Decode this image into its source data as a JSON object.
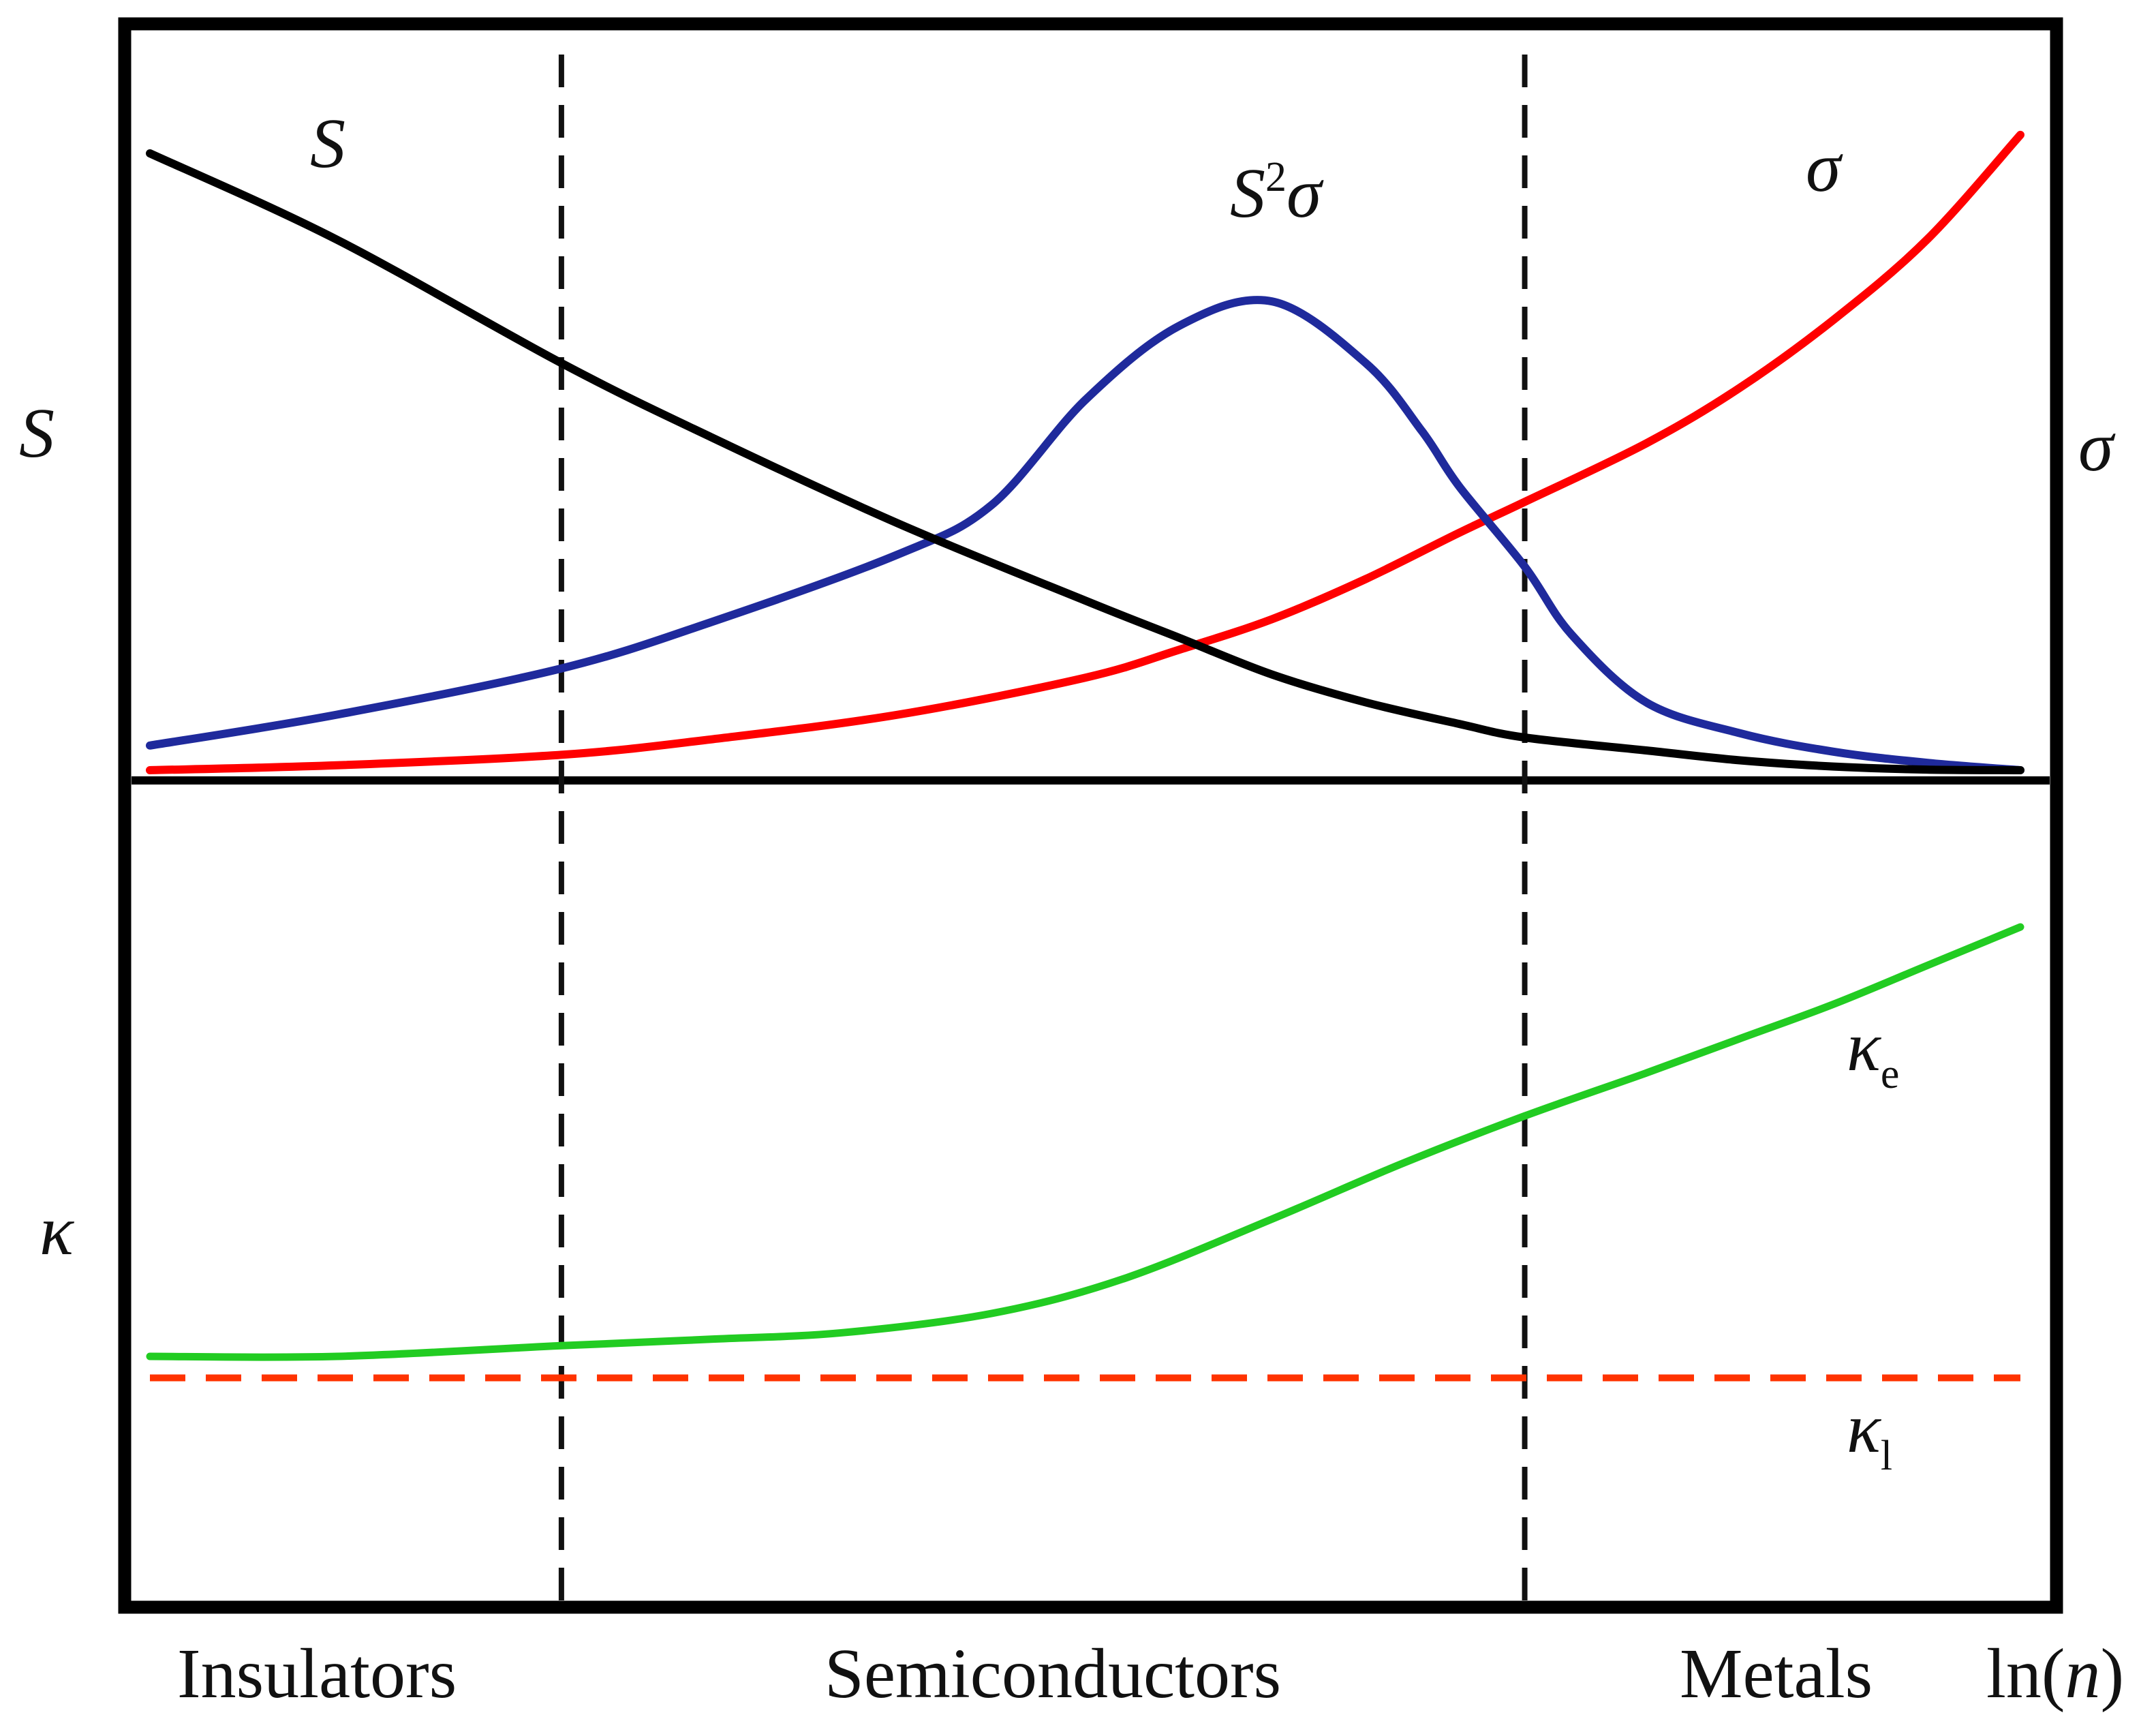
{
  "chart_data": {
    "type": "line",
    "title": "",
    "xlabel": "ln(n)",
    "xlabel_parts": {
      "fn": "ln(",
      "var": "n",
      "close": ")"
    },
    "ylabel_top_left": "S",
    "ylabel_top_right": "σ",
    "ylabel_bottom_left": "κ",
    "x_range": [
      0,
      100
    ],
    "regions": [
      {
        "label": "Insulators",
        "from": 0,
        "to": 22
      },
      {
        "label": "Semiconductors",
        "from": 22,
        "to": 73.5
      },
      {
        "label": "Metals",
        "from": 73.5,
        "to": 100
      }
    ],
    "boundaries": [
      22,
      73.5
    ],
    "panels": [
      {
        "name": "top",
        "y_range": [
          0,
          100
        ],
        "series": [
          {
            "name": "S",
            "label": "S",
            "color": "#000000",
            "x": [
              0,
              10,
              22,
              30,
              40,
              50,
              55,
              60,
              65,
              70,
              73.5,
              80,
              85,
              90,
              95,
              100
            ],
            "y": [
              100,
              86,
              66,
              54,
              40,
              27.5,
              21.5,
              15.5,
              11,
              7.5,
              5.3,
              3.2,
              1.6,
              0.6,
              0.1,
              0
            ]
          },
          {
            "name": "sigma",
            "label": "σ",
            "color": "#ff0000",
            "x": [
              0,
              10,
              22,
              30,
              40,
              50,
              55,
              60,
              65,
              70,
              73.5,
              80,
              85,
              90,
              95,
              100
            ],
            "y": [
              0,
              0.8,
              2.5,
              5,
              9,
              15,
              19.5,
              24.5,
              31,
              38.5,
              43.5,
              53,
              62,
              73,
              86,
              103
            ]
          },
          {
            "name": "power_factor",
            "label": "S",
            "label_sup": "2",
            "label_tail": "σ",
            "color": "#1f2a9c",
            "x": [
              0,
              10,
              22,
              30,
              40,
              45,
              50,
              55,
              60,
              65,
              68,
              70,
              73.5,
              76,
              80,
              85,
              90,
              95,
              100
            ],
            "y": [
              4,
              9,
              16.5,
              24,
              35,
              43,
              60,
              72,
              76,
              66,
              55,
              46,
              33,
              22,
              11,
              6,
              3,
              1.2,
              0
            ]
          }
        ]
      },
      {
        "name": "bottom",
        "y_range": [
          0,
          100
        ],
        "series": [
          {
            "name": "kappa_e",
            "label": "κ",
            "label_sub": "e",
            "color": "#22cc22",
            "dashed": false,
            "x": [
              0,
              10,
              22,
              30,
              37,
              45,
              52,
              60,
              67,
              73.5,
              80,
              85,
              90,
              95,
              100
            ],
            "y": [
              0,
              0,
              2.5,
              4,
              5.5,
              10,
              18,
              32,
              45,
              56,
              66,
              74,
              82,
              91,
              100
            ]
          },
          {
            "name": "kappa_l",
            "label": "κ",
            "label_sub": "l",
            "color": "#ff3300",
            "dashed": true,
            "x": [
              0,
              100
            ],
            "y": [
              -5,
              -5
            ]
          }
        ]
      }
    ]
  }
}
